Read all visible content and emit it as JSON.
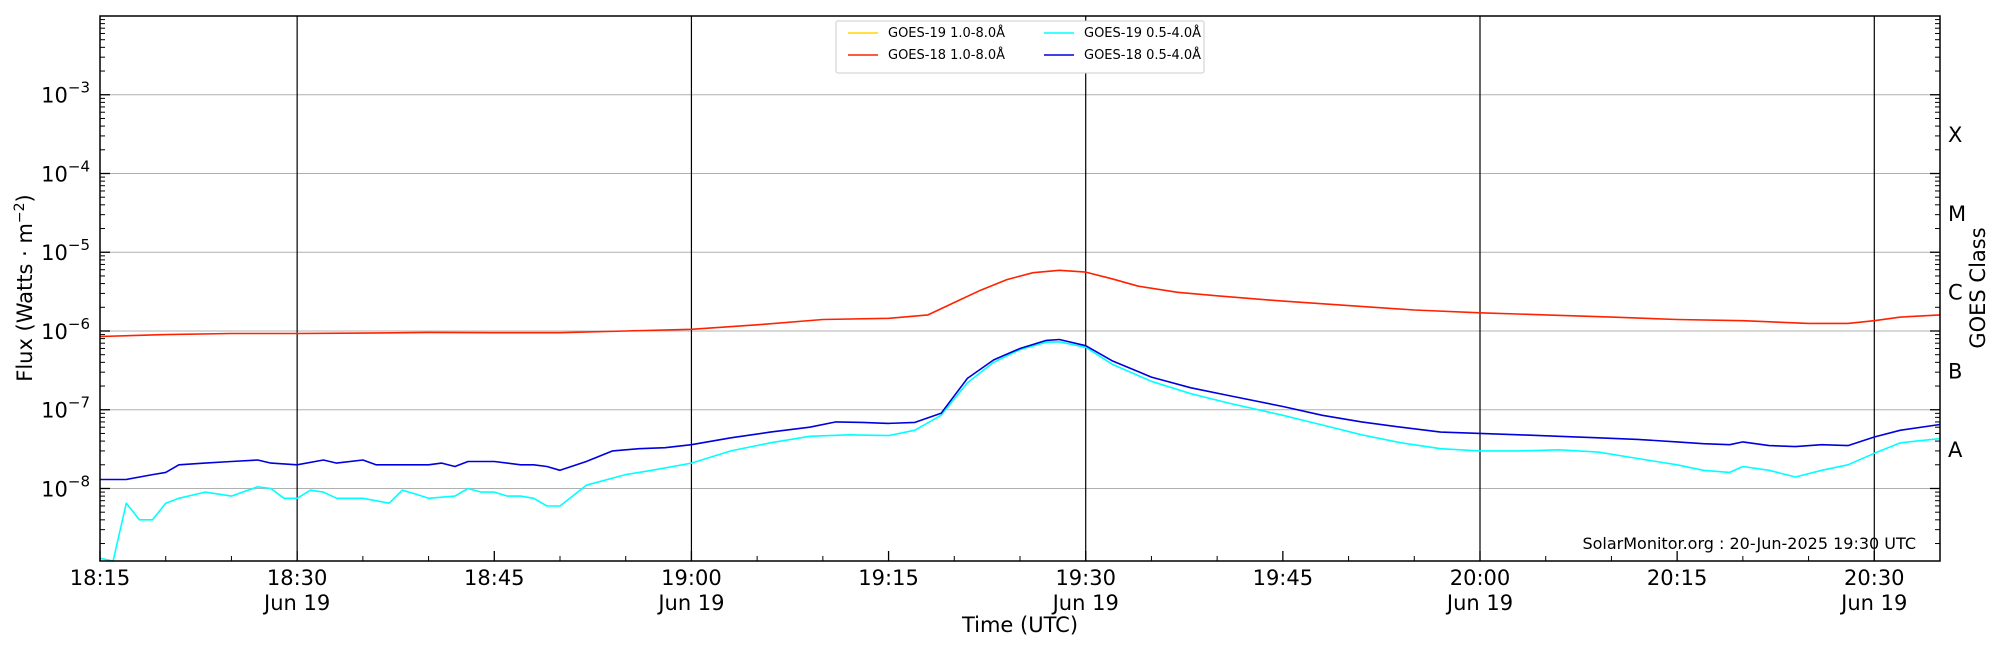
{
  "chart_data": {
    "type": "line",
    "title": "",
    "xlabel": "Time (UTC)",
    "ylabel_main": "Flux (Watts · m",
    "ylabel_sup": "−2",
    "ylabel_close": ")",
    "y2label": "GOES Class",
    "yscale": "log",
    "xlim": [
      "18:15",
      "20:35"
    ],
    "ylim": [
      1.2e-09,
      0.01
    ],
    "grid": {
      "horizontal": true,
      "vertical_lines_at": [
        "18:30",
        "19:00",
        "19:30",
        "20:00",
        "20:30"
      ]
    },
    "legend_position": "top-center",
    "annotation": "SolarMonitor.org : 20-Jun-2025 19:30 UTC",
    "x_ticks": [
      {
        "t": "18:15",
        "label": "18:15",
        "sub": ""
      },
      {
        "t": "18:30",
        "label": "18:30",
        "sub": "Jun 19"
      },
      {
        "t": "18:45",
        "label": "18:45",
        "sub": ""
      },
      {
        "t": "19:00",
        "label": "19:00",
        "sub": "Jun 19"
      },
      {
        "t": "19:15",
        "label": "19:15",
        "sub": ""
      },
      {
        "t": "19:30",
        "label": "19:30",
        "sub": "Jun 19"
      },
      {
        "t": "19:45",
        "label": "19:45",
        "sub": ""
      },
      {
        "t": "20:00",
        "label": "20:00",
        "sub": "Jun 19"
      },
      {
        "t": "20:15",
        "label": "20:15",
        "sub": ""
      },
      {
        "t": "20:30",
        "label": "20:30",
        "sub": "Jun 19"
      }
    ],
    "y_ticks": [
      {
        "value": 1e-08,
        "mantissa": "10",
        "exp": "−8"
      },
      {
        "value": 1e-07,
        "mantissa": "10",
        "exp": "−7"
      },
      {
        "value": 1e-06,
        "mantissa": "10",
        "exp": "−6"
      },
      {
        "value": 1e-05,
        "mantissa": "10",
        "exp": "−5"
      },
      {
        "value": 0.0001,
        "mantissa": "10",
        "exp": "−4"
      },
      {
        "value": 0.001,
        "mantissa": "10",
        "exp": "−3"
      }
    ],
    "goes_classes": [
      {
        "label": "A",
        "value": 3.16e-08
      },
      {
        "label": "B",
        "value": 3.16e-07
      },
      {
        "label": "C",
        "value": 3.16e-06
      },
      {
        "label": "M",
        "value": 3.16e-05
      },
      {
        "label": "X",
        "value": 0.000316
      }
    ],
    "series": [
      {
        "name": "GOES-19 1.0-8.0Å",
        "color": "#ffd700",
        "x": [],
        "y": []
      },
      {
        "name": "GOES-19 0.5-4.0Å",
        "color": "#00ffff",
        "x": [
          "18:15",
          "18:16",
          "18:17",
          "18:18",
          "18:19",
          "18:20",
          "18:21",
          "18:23",
          "18:25",
          "18:27",
          "18:28",
          "18:29",
          "18:30",
          "18:31",
          "18:32",
          "18:33",
          "18:35",
          "18:37",
          "18:38",
          "18:39",
          "18:40",
          "18:42",
          "18:43",
          "18:44",
          "18:45",
          "18:46",
          "18:47",
          "18:48",
          "18:49",
          "18:50",
          "18:52",
          "18:55",
          "18:57",
          "19:00",
          "19:03",
          "19:06",
          "19:09",
          "19:12",
          "19:15",
          "19:17",
          "19:19",
          "19:21",
          "19:23",
          "19:25",
          "19:27",
          "19:28",
          "19:30",
          "19:32",
          "19:35",
          "19:38",
          "19:41",
          "19:45",
          "19:48",
          "19:51",
          "19:54",
          "19:57",
          "20:00",
          "20:03",
          "20:06",
          "20:09",
          "20:12",
          "20:15",
          "20:17",
          "20:19",
          "20:20",
          "20:22",
          "20:24",
          "20:26",
          "20:28",
          "20:30",
          "20:32",
          "20:35"
        ],
        "y": [
          1.3e-09,
          1.2e-09,
          6.5e-09,
          4e-09,
          4e-09,
          6.5e-09,
          7.5e-09,
          9e-09,
          8e-09,
          1.05e-08,
          1e-08,
          7.5e-09,
          7.5e-09,
          9.5e-09,
          9e-09,
          7.5e-09,
          7.5e-09,
          6.5e-09,
          9.5e-09,
          8.5e-09,
          7.5e-09,
          8e-09,
          1e-08,
          9e-09,
          9e-09,
          8e-09,
          8e-09,
          7.5e-09,
          6e-09,
          6e-09,
          1.1e-08,
          1.5e-08,
          1.7e-08,
          2.1e-08,
          3e-08,
          3.8e-08,
          4.6e-08,
          4.8e-08,
          4.7e-08,
          5.5e-08,
          8.5e-08,
          2.2e-07,
          4e-07,
          5.8e-07,
          7.2e-07,
          7.3e-07,
          6.2e-07,
          3.8e-07,
          2.3e-07,
          1.6e-07,
          1.2e-07,
          8.5e-08,
          6.4e-08,
          4.8e-08,
          3.8e-08,
          3.2e-08,
          3e-08,
          3e-08,
          3.1e-08,
          2.9e-08,
          2.4e-08,
          2e-08,
          1.7e-08,
          1.6e-08,
          1.9e-08,
          1.7e-08,
          1.4e-08,
          1.7e-08,
          2e-08,
          2.8e-08,
          3.8e-08,
          4.3e-08
        ]
      },
      {
        "name": "GOES-18 1.0-8.0Å",
        "color": "#ff2200",
        "x": [
          "18:15",
          "18:20",
          "18:25",
          "18:30",
          "18:35",
          "18:40",
          "18:45",
          "18:50",
          "18:55",
          "19:00",
          "19:05",
          "19:10",
          "19:15",
          "19:18",
          "19:20",
          "19:22",
          "19:24",
          "19:26",
          "19:28",
          "19:30",
          "19:32",
          "19:34",
          "19:37",
          "19:40",
          "19:45",
          "19:50",
          "19:55",
          "20:00",
          "20:05",
          "20:10",
          "20:15",
          "20:20",
          "20:25",
          "20:28",
          "20:30",
          "20:32",
          "20:35"
        ],
        "y": [
          8.5e-07,
          9e-07,
          9.3e-07,
          9.3e-07,
          9.4e-07,
          9.6e-07,
          9.5e-07,
          9.5e-07,
          1e-06,
          1.05e-06,
          1.2e-06,
          1.4e-06,
          1.45e-06,
          1.6e-06,
          2.3e-06,
          3.3e-06,
          4.5e-06,
          5.5e-06,
          5.9e-06,
          5.6e-06,
          4.6e-06,
          3.7e-06,
          3.1e-06,
          2.8e-06,
          2.4e-06,
          2.1e-06,
          1.85e-06,
          1.7e-06,
          1.6e-06,
          1.5e-06,
          1.4e-06,
          1.35e-06,
          1.25e-06,
          1.25e-06,
          1.35e-06,
          1.5e-06,
          1.6e-06
        ]
      },
      {
        "name": "GOES-18 0.5-4.0Å",
        "color": "#0000dd",
        "x": [
          "18:15",
          "18:17",
          "18:19",
          "18:20",
          "18:21",
          "18:23",
          "18:25",
          "18:27",
          "18:28",
          "18:30",
          "18:32",
          "18:33",
          "18:35",
          "18:36",
          "18:38",
          "18:40",
          "18:41",
          "18:42",
          "18:43",
          "18:45",
          "18:47",
          "18:48",
          "18:49",
          "18:50",
          "18:52",
          "18:54",
          "18:56",
          "18:58",
          "19:00",
          "19:03",
          "19:06",
          "19:09",
          "19:11",
          "19:13",
          "19:15",
          "19:17",
          "19:19",
          "19:21",
          "19:23",
          "19:25",
          "19:27",
          "19:28",
          "19:30",
          "19:32",
          "19:35",
          "19:38",
          "19:41",
          "19:45",
          "19:48",
          "19:51",
          "19:54",
          "19:57",
          "20:00",
          "20:03",
          "20:06",
          "20:09",
          "20:12",
          "20:15",
          "20:17",
          "20:19",
          "20:20",
          "20:22",
          "20:24",
          "20:26",
          "20:28",
          "20:30",
          "20:32",
          "20:35"
        ],
        "y": [
          1.3e-08,
          1.3e-08,
          1.5e-08,
          1.6e-08,
          2e-08,
          2.1e-08,
          2.2e-08,
          2.3e-08,
          2.1e-08,
          2e-08,
          2.3e-08,
          2.1e-08,
          2.3e-08,
          2e-08,
          2e-08,
          2e-08,
          2.1e-08,
          1.9e-08,
          2.2e-08,
          2.2e-08,
          2e-08,
          2e-08,
          1.9e-08,
          1.7e-08,
          2.2e-08,
          3e-08,
          3.2e-08,
          3.3e-08,
          3.6e-08,
          4.4e-08,
          5.2e-08,
          6e-08,
          7e-08,
          6.9e-08,
          6.7e-08,
          6.9e-08,
          9e-08,
          2.5e-07,
          4.3e-07,
          6e-07,
          7.6e-07,
          7.8e-07,
          6.5e-07,
          4.2e-07,
          2.6e-07,
          1.9e-07,
          1.5e-07,
          1.1e-07,
          8.5e-08,
          7e-08,
          6e-08,
          5.2e-08,
          5e-08,
          4.8e-08,
          4.6e-08,
          4.4e-08,
          4.2e-08,
          3.9e-08,
          3.7e-08,
          3.6e-08,
          3.9e-08,
          3.5e-08,
          3.4e-08,
          3.6e-08,
          3.5e-08,
          4.5e-08,
          5.5e-08,
          6.5e-08
        ]
      }
    ],
    "legend_order": [
      0,
      2,
      1,
      3
    ]
  }
}
